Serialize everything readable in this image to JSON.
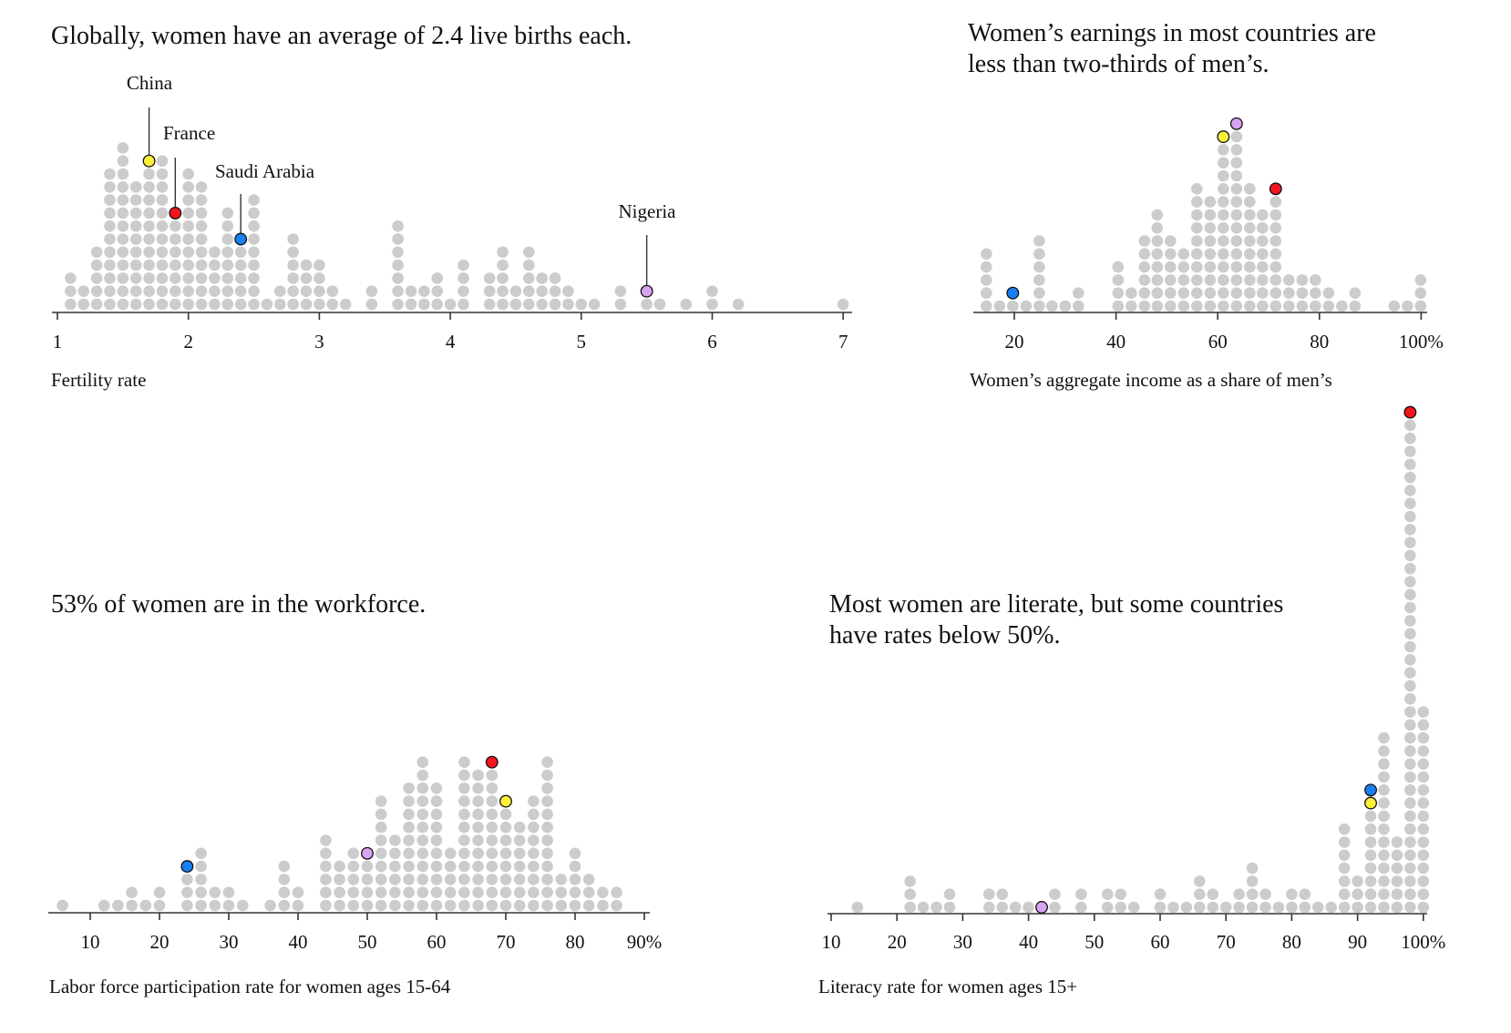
{
  "colors": {
    "dot": "#cccccc",
    "China": "#fff13a",
    "France": "#f2141e",
    "Saudi Arabia": "#1a7ef5",
    "Nigeria": "#d9a2f2"
  },
  "charts": [
    {
      "type": "dot-histogram",
      "title_lines": [
        "Globally, women have an average of 2.4 live births each."
      ],
      "xlabel": "Fertility rate",
      "ticks": [
        {
          "value": 1,
          "label": "1"
        },
        {
          "value": 2,
          "label": "2"
        },
        {
          "value": 3,
          "label": "3"
        },
        {
          "value": 4,
          "label": "4"
        },
        {
          "value": 5,
          "label": "5"
        },
        {
          "value": 6,
          "label": "6"
        },
        {
          "value": 7,
          "label": "7"
        }
      ],
      "columns": [
        {
          "x": 1.1,
          "count": 3
        },
        {
          "x": 1.2,
          "count": 2
        },
        {
          "x": 1.3,
          "count": 5
        },
        {
          "x": 1.4,
          "count": 11
        },
        {
          "x": 1.5,
          "count": 13
        },
        {
          "x": 1.6,
          "count": 10
        },
        {
          "x": 1.7,
          "count": 12
        },
        {
          "x": 1.8,
          "count": 12
        },
        {
          "x": 1.9,
          "count": 8
        },
        {
          "x": 2.0,
          "count": 11
        },
        {
          "x": 2.1,
          "count": 10
        },
        {
          "x": 2.2,
          "count": 5
        },
        {
          "x": 2.3,
          "count": 8
        },
        {
          "x": 2.4,
          "count": 6
        },
        {
          "x": 2.5,
          "count": 9
        },
        {
          "x": 2.6,
          "count": 1
        },
        {
          "x": 2.7,
          "count": 2
        },
        {
          "x": 2.8,
          "count": 6
        },
        {
          "x": 2.9,
          "count": 4
        },
        {
          "x": 3.0,
          "count": 4
        },
        {
          "x": 3.1,
          "count": 2
        },
        {
          "x": 3.2,
          "count": 1
        },
        {
          "x": 3.4,
          "count": 2
        },
        {
          "x": 3.6,
          "count": 7
        },
        {
          "x": 3.7,
          "count": 2
        },
        {
          "x": 3.8,
          "count": 2
        },
        {
          "x": 3.9,
          "count": 3
        },
        {
          "x": 4.0,
          "count": 1
        },
        {
          "x": 4.1,
          "count": 4
        },
        {
          "x": 4.3,
          "count": 3
        },
        {
          "x": 4.4,
          "count": 5
        },
        {
          "x": 4.5,
          "count": 2
        },
        {
          "x": 4.6,
          "count": 5
        },
        {
          "x": 4.7,
          "count": 3
        },
        {
          "x": 4.8,
          "count": 3
        },
        {
          "x": 4.9,
          "count": 2
        },
        {
          "x": 5.0,
          "count": 1
        },
        {
          "x": 5.1,
          "count": 1
        },
        {
          "x": 5.3,
          "count": 2
        },
        {
          "x": 5.5,
          "count": 2
        },
        {
          "x": 5.6,
          "count": 1
        },
        {
          "x": 5.8,
          "count": 1
        },
        {
          "x": 6.0,
          "count": 2
        },
        {
          "x": 6.2,
          "count": 1
        },
        {
          "x": 7.0,
          "count": 1
        }
      ],
      "highlights": [
        {
          "series": "China",
          "x": 1.7,
          "stack_position": 12,
          "label": "China"
        },
        {
          "series": "France",
          "x": 1.9,
          "stack_position": 8,
          "label": "France"
        },
        {
          "series": "Saudi Arabia",
          "x": 2.4,
          "stack_position": 6,
          "label": "Saudi Arabia"
        },
        {
          "series": "Nigeria",
          "x": 5.5,
          "stack_position": 2,
          "label": "Nigeria"
        }
      ]
    },
    {
      "type": "dot-histogram",
      "title_lines": [
        "Women’s earnings in most countries are",
        "less than two-thirds of men’s."
      ],
      "xlabel": "Women’s aggregate income as a share of men’s",
      "ticks": [
        {
          "value": 20,
          "label": "20"
        },
        {
          "value": 40,
          "label": "40"
        },
        {
          "value": 60,
          "label": "60"
        },
        {
          "value": 80,
          "label": "80"
        },
        {
          "value": 100,
          "label": "100%"
        }
      ],
      "columns": [
        {
          "x": 14.5,
          "count": 5
        },
        {
          "x": 17.1,
          "count": 1
        },
        {
          "x": 19.7,
          "count": 2
        },
        {
          "x": 22.3,
          "count": 1
        },
        {
          "x": 24.9,
          "count": 6
        },
        {
          "x": 27.4,
          "count": 1
        },
        {
          "x": 30.0,
          "count": 1
        },
        {
          "x": 32.6,
          "count": 2
        },
        {
          "x": 40.4,
          "count": 4
        },
        {
          "x": 43.0,
          "count": 2
        },
        {
          "x": 45.6,
          "count": 6
        },
        {
          "x": 48.1,
          "count": 8
        },
        {
          "x": 50.7,
          "count": 6
        },
        {
          "x": 53.3,
          "count": 5
        },
        {
          "x": 55.9,
          "count": 10
        },
        {
          "x": 58.5,
          "count": 9
        },
        {
          "x": 61.1,
          "count": 14
        },
        {
          "x": 63.7,
          "count": 15
        },
        {
          "x": 66.3,
          "count": 10
        },
        {
          "x": 68.8,
          "count": 8
        },
        {
          "x": 71.4,
          "count": 10
        },
        {
          "x": 74.0,
          "count": 3
        },
        {
          "x": 76.6,
          "count": 3
        },
        {
          "x": 79.2,
          "count": 3
        },
        {
          "x": 81.8,
          "count": 2
        },
        {
          "x": 84.4,
          "count": 1
        },
        {
          "x": 87.0,
          "count": 2
        },
        {
          "x": 94.7,
          "count": 1
        },
        {
          "x": 97.3,
          "count": 1
        },
        {
          "x": 99.9,
          "count": 3
        }
      ],
      "highlights": [
        {
          "series": "Saudi Arabia",
          "x": 19.7,
          "stack_position": 2
        },
        {
          "series": "China",
          "x": 61.1,
          "stack_position": 14
        },
        {
          "series": "Nigeria",
          "x": 63.7,
          "stack_position": 15
        },
        {
          "series": "France",
          "x": 71.4,
          "stack_position": 10
        }
      ]
    },
    {
      "type": "dot-histogram",
      "title_lines": [
        "53% of women are in the workforce."
      ],
      "xlabel": "Labor force participation rate for women ages 15-64",
      "ticks": [
        {
          "value": 10,
          "label": "10"
        },
        {
          "value": 20,
          "label": "20"
        },
        {
          "value": 30,
          "label": "30"
        },
        {
          "value": 40,
          "label": "40"
        },
        {
          "value": 50,
          "label": "50"
        },
        {
          "value": 60,
          "label": "60"
        },
        {
          "value": 70,
          "label": "70"
        },
        {
          "value": 80,
          "label": "80"
        },
        {
          "value": 90,
          "label": "90%"
        }
      ],
      "columns": [
        {
          "x": 6,
          "count": 1
        },
        {
          "x": 12,
          "count": 1
        },
        {
          "x": 14,
          "count": 1
        },
        {
          "x": 16,
          "count": 2
        },
        {
          "x": 18,
          "count": 1
        },
        {
          "x": 20,
          "count": 2
        },
        {
          "x": 24,
          "count": 4
        },
        {
          "x": 26,
          "count": 5
        },
        {
          "x": 28,
          "count": 2
        },
        {
          "x": 30,
          "count": 2
        },
        {
          "x": 32,
          "count": 1
        },
        {
          "x": 36,
          "count": 1
        },
        {
          "x": 38,
          "count": 4
        },
        {
          "x": 40,
          "count": 2
        },
        {
          "x": 44,
          "count": 6
        },
        {
          "x": 46,
          "count": 4
        },
        {
          "x": 48,
          "count": 5
        },
        {
          "x": 50,
          "count": 5
        },
        {
          "x": 52,
          "count": 9
        },
        {
          "x": 54,
          "count": 6
        },
        {
          "x": 56,
          "count": 10
        },
        {
          "x": 58,
          "count": 12
        },
        {
          "x": 60,
          "count": 10
        },
        {
          "x": 62,
          "count": 5
        },
        {
          "x": 64,
          "count": 12
        },
        {
          "x": 66,
          "count": 11
        },
        {
          "x": 68,
          "count": 12
        },
        {
          "x": 70,
          "count": 9
        },
        {
          "x": 72,
          "count": 7
        },
        {
          "x": 74,
          "count": 9
        },
        {
          "x": 76,
          "count": 12
        },
        {
          "x": 78,
          "count": 3
        },
        {
          "x": 80,
          "count": 5
        },
        {
          "x": 82,
          "count": 3
        },
        {
          "x": 84,
          "count": 2
        },
        {
          "x": 86,
          "count": 2
        }
      ],
      "highlights": [
        {
          "series": "Saudi Arabia",
          "x": 24,
          "stack_position": 4
        },
        {
          "series": "Nigeria",
          "x": 50,
          "stack_position": 5
        },
        {
          "series": "France",
          "x": 68,
          "stack_position": 12
        },
        {
          "series": "China",
          "x": 70,
          "stack_position": 9
        }
      ]
    },
    {
      "type": "dot-histogram",
      "title_lines": [
        "Most women are literate, but some countries",
        "have rates below 50%."
      ],
      "xlabel": "Literacy rate for women ages 15+",
      "ticks": [
        {
          "value": 10,
          "label": "10"
        },
        {
          "value": 20,
          "label": "20"
        },
        {
          "value": 30,
          "label": "30"
        },
        {
          "value": 40,
          "label": "40"
        },
        {
          "value": 50,
          "label": "50"
        },
        {
          "value": 60,
          "label": "60"
        },
        {
          "value": 70,
          "label": "70"
        },
        {
          "value": 80,
          "label": "80"
        },
        {
          "value": 90,
          "label": "90"
        },
        {
          "value": 100,
          "label": "100%"
        }
      ],
      "columns": [
        {
          "x": 14,
          "count": 1
        },
        {
          "x": 22,
          "count": 3
        },
        {
          "x": 24,
          "count": 1
        },
        {
          "x": 26,
          "count": 1
        },
        {
          "x": 28,
          "count": 2
        },
        {
          "x": 34,
          "count": 2
        },
        {
          "x": 36,
          "count": 2
        },
        {
          "x": 38,
          "count": 1
        },
        {
          "x": 40,
          "count": 1
        },
        {
          "x": 42,
          "count": 1
        },
        {
          "x": 44,
          "count": 2
        },
        {
          "x": 48,
          "count": 2
        },
        {
          "x": 52,
          "count": 2
        },
        {
          "x": 54,
          "count": 2
        },
        {
          "x": 56,
          "count": 1
        },
        {
          "x": 60,
          "count": 2
        },
        {
          "x": 62,
          "count": 1
        },
        {
          "x": 64,
          "count": 1
        },
        {
          "x": 66,
          "count": 3
        },
        {
          "x": 68,
          "count": 2
        },
        {
          "x": 70,
          "count": 1
        },
        {
          "x": 72,
          "count": 2
        },
        {
          "x": 74,
          "count": 4
        },
        {
          "x": 76,
          "count": 2
        },
        {
          "x": 78,
          "count": 1
        },
        {
          "x": 80,
          "count": 2
        },
        {
          "x": 82,
          "count": 2
        },
        {
          "x": 84,
          "count": 1
        },
        {
          "x": 86,
          "count": 1
        },
        {
          "x": 88,
          "count": 7
        },
        {
          "x": 90,
          "count": 3
        },
        {
          "x": 92,
          "count": 10
        },
        {
          "x": 94,
          "count": 14
        },
        {
          "x": 96,
          "count": 6
        },
        {
          "x": 98,
          "count": 39
        },
        {
          "x": 100,
          "count": 16
        }
      ],
      "highlights": [
        {
          "series": "Nigeria",
          "x": 42,
          "stack_position": 1
        },
        {
          "series": "China",
          "x": 92,
          "stack_position": 9
        },
        {
          "series": "Saudi Arabia",
          "x": 92,
          "stack_position": 10
        },
        {
          "series": "France",
          "x": 98,
          "stack_position": 39
        }
      ]
    }
  ]
}
